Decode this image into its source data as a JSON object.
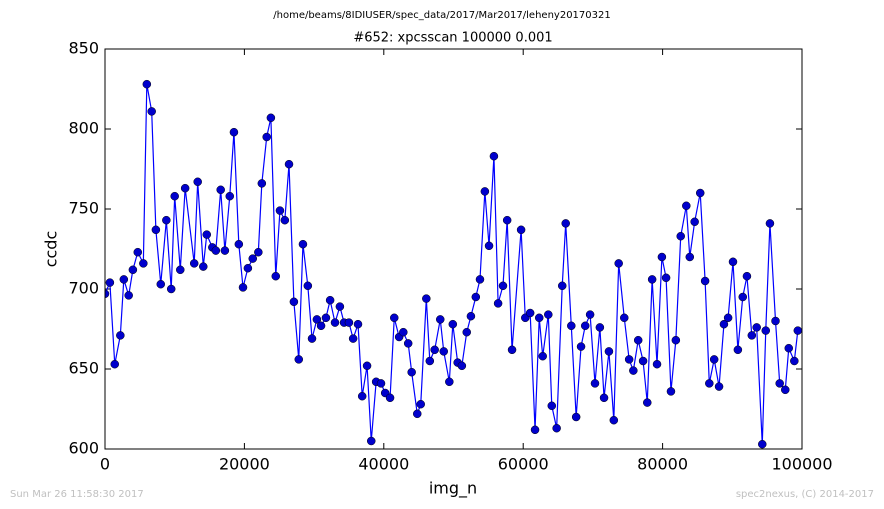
{
  "chart_data": {
    "type": "line",
    "suptitle": "/home/beams/8IDIUSER/spec_data/2017/Mar2017/leheny20170321",
    "title": "#652: xpcsscan 100000 0.001",
    "xlabel": "img_n",
    "ylabel": "ccdc",
    "footer_left": "Sun Mar 26 11:58:30 2017",
    "footer_right": "spec2nexus, (C) 2014-2017",
    "color": "#0000ff",
    "marker_color": "#0000cc",
    "xlim": [
      0,
      100000
    ],
    "xticks": [
      0,
      20000,
      40000,
      60000,
      80000,
      100000
    ],
    "ylim": [
      600,
      850
    ],
    "yticks": [
      600,
      650,
      700,
      750,
      800,
      850
    ],
    "x": [
      0,
      700,
      1400,
      2200,
      2700,
      3400,
      4000,
      4700,
      5500,
      6000,
      6700,
      7300,
      8000,
      8800,
      9500,
      10000,
      10800,
      11500,
      12800,
      13300,
      14100,
      14600,
      15400,
      15900,
      16600,
      17200,
      17900,
      18500,
      19200,
      19800,
      20500,
      21200,
      22000,
      22500,
      23200,
      23800,
      24500,
      25100,
      25800,
      26400,
      27100,
      27800,
      28400,
      29100,
      29700,
      30400,
      31000,
      31700,
      32300,
      33000,
      33700,
      34300,
      35000,
      35600,
      36300,
      36900,
      37600,
      38200,
      38900,
      39600,
      40200,
      40900,
      41500,
      42200,
      42800,
      43500,
      44000,
      44800,
      45300,
      46100,
      46600,
      47300,
      48100,
      48600,
      49400,
      49900,
      50600,
      51200,
      51900,
      52500,
      53200,
      53800,
      54500,
      55100,
      55800,
      56400,
      57100,
      57700,
      58400,
      59700,
      60300,
      61000,
      61700,
      62300,
      62800,
      63600,
      64100,
      64800,
      65600,
      66100,
      66900,
      67600,
      68300,
      68900,
      69600,
      70300,
      71000,
      71600,
      72300,
      73000,
      73700,
      74500,
      75200,
      75800,
      76500,
      77200,
      77800,
      78500,
      79200,
      79900,
      80500,
      81200,
      81900,
      82600,
      83400,
      83900,
      84600,
      85400,
      86100,
      86700,
      87400,
      88100,
      88800,
      89400,
      90100,
      90800,
      91500,
      92100,
      92800,
      93500,
      94300,
      94800,
      95400,
      96200,
      96800,
      97600,
      98100,
      98900,
      99400
    ],
    "values": [
      697,
      704,
      653,
      671,
      706,
      696,
      712,
      723,
      716,
      828,
      811,
      737,
      703,
      743,
      700,
      758,
      712,
      763,
      716,
      767,
      714,
      734,
      726,
      724,
      762,
      724,
      758,
      798,
      728,
      701,
      713,
      719,
      723,
      766,
      795,
      807,
      708,
      749,
      743,
      778,
      692,
      656,
      728,
      702,
      669,
      681,
      677,
      682,
      693,
      679,
      689,
      679,
      679,
      669,
      678,
      633,
      652,
      605,
      642,
      641,
      635,
      632,
      682,
      670,
      673,
      666,
      648,
      622,
      628,
      694,
      655,
      662,
      681,
      661,
      642,
      678,
      654,
      652,
      673,
      683,
      695,
      706,
      761,
      727,
      783,
      691,
      702,
      743,
      662,
      737,
      682,
      685,
      612,
      682,
      658,
      684,
      627,
      613,
      702,
      741,
      677,
      620,
      664,
      677,
      684,
      641,
      676,
      632,
      661,
      618,
      716,
      682,
      656,
      649,
      668,
      655,
      629,
      706,
      653,
      720,
      707,
      636,
      668,
      733,
      752,
      720,
      742,
      760,
      705,
      641,
      656,
      639,
      678,
      682,
      717,
      662,
      695,
      708,
      671,
      676,
      603,
      674,
      741,
      680,
      641,
      637,
      663,
      655,
      674
    ]
  }
}
